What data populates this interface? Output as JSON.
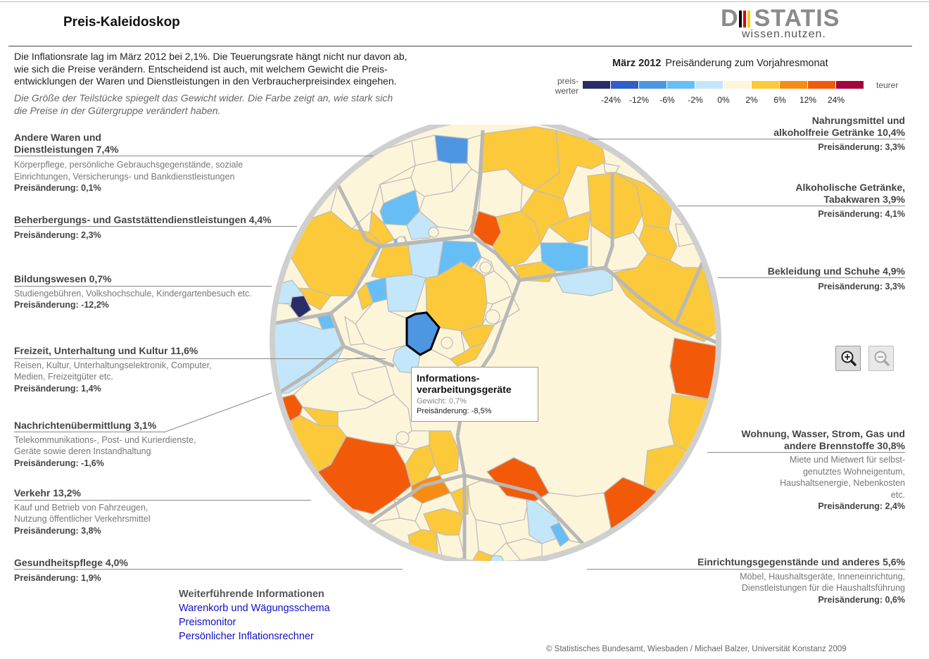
{
  "header": {
    "title": "Preis-Kaleidoskop"
  },
  "logo": {
    "word_left": "D",
    "word_right": "STATIS",
    "tagline": "wissen.nutzen.",
    "bar_colors": [
      "#000000",
      "#dd0000",
      "#ffcc00",
      "#8a8a8a"
    ]
  },
  "intro": {
    "text": "Die Inflationsrate lag im März 2012 bei 2,1%. Die Teuerungsrate hängt nicht nur davon ab, wie sich die Preise verändern. Entscheidend ist auch, mit welchem Gewicht die Preis­entwicklungen der Waren und Dienstleistungen in den Verbraucherpreisindex eingehen.",
    "hint": "Die Größe der Teilstücke spiegelt das Gewicht wider. Die Farbe zeigt an, wie stark sich die Preise in der Gütergruppe verändert haben."
  },
  "legend": {
    "month": "März 2012",
    "title": "Preisänderung zum Vorjahresmonat",
    "cheaper": "preis-werter",
    "dearer": "teurer",
    "ticks": [
      "-24%",
      "-12%",
      "-6%",
      "-2%",
      "0%",
      "2%",
      "6%",
      "12%",
      "24%"
    ],
    "colors": [
      "#2a2c66",
      "#2e5ec8",
      "#4e96e2",
      "#66bef5",
      "#c4e6fa",
      "#fdf5da",
      "#fcc93a",
      "#f68c14",
      "#f25a0a",
      "#a3053c"
    ]
  },
  "labels": {
    "g0": {
      "name": "Andere Waren und Dienstleistungen 7,4%",
      "desc": "Körperpflege, persönliche Gebrauchsgegenstände, soziale Einrichtungen, Versicherungs- und Bankdienstleistungen",
      "change": "Preisänderung: 0,1%"
    },
    "g1": {
      "name": "Beherbergungs- und Gaststättendienstleistungen 4,4%",
      "change": "Preisänderung: 2,3%"
    },
    "g2": {
      "name": "Bildungswesen 0,7%",
      "desc": "Studiengebühren, Volkshochschule, Kindergartenbesuch etc.",
      "change": "Preisänderung: -12,2%"
    },
    "g3": {
      "name": "Freizeit, Unterhaltung und Kultur 11,6%",
      "desc": "Reisen, Kultur, Unterhaltungselektronik, Computer, Medien, Freizeitgüter etc.",
      "change": "Preisänderung: 1,4%"
    },
    "g4": {
      "name": "Nachrichtenübermittlung 3,1%",
      "desc": "Telekommunikations-, Post- und Kurierdienste, Geräte sowie deren Instandhaltung",
      "change": "Preisänderung: -1,6%"
    },
    "g5": {
      "name": "Verkehr 13,2%",
      "desc": "Kauf und Betrieb von Fahrzeugen, Nutzung öffentlicher Verkehrsmittel",
      "change": "Preisänderung: 3,8%"
    },
    "g6": {
      "name": "Gesundheitspflege 4,0%",
      "change": "Preisänderung: 1,9%"
    },
    "g7": {
      "name": "Nahrungsmittel und alkoholfreie Getränke 10,4%",
      "change": "Preisänderung: 3,3%"
    },
    "g8": {
      "name": "Alkoholische Getränke, Tabakwaren 3,9%",
      "change": "Preisänderung: 4,1%"
    },
    "g9": {
      "name": "Bekleidung und Schuhe 4,9%",
      "change": "Preisänderung: 3,3%"
    },
    "g10": {
      "name": "Wohnung, Wasser, Strom, Gas und andere Brennstoffe 30,8%",
      "desc": "Miete und Mietwert für selbst­genutztes Wohneigentum, Haushalts­energie, Nebenkosten etc.",
      "change": "Preisänderung: 2,4%"
    },
    "g11": {
      "name": "Einrichtungsgegenstände und anderes 5,6%",
      "desc": "Möbel, Haushaltsgeräte, Inneneinrichtung, Dienstleistungen für die Haushaltsführung",
      "change": "Preisänderung: 0,6%"
    }
  },
  "tooltip": {
    "name": "Informations-verarbeitungsgeräte",
    "weight": "Gewicht: 0,7%",
    "change": "Preisänderung: -8,5%"
  },
  "more": {
    "heading": "Weiterführende Informationen",
    "links": [
      "Warenkorb und Wägungsschema",
      "Preismonitor",
      "Persönlicher Inflationsrechner"
    ]
  },
  "copyright": "© Statistisches Bundesamt, Wiesbaden / Michael Balzer, Universität Konstanz 2009",
  "chart_data": {
    "type": "voronoi-treemap",
    "title": "März 2012 Preisänderung zum Vorjahresmonat",
    "groups": [
      {
        "name": "Andere Waren und Dienstleistungen",
        "weight": 7.4,
        "change": 0.1
      },
      {
        "name": "Beherbergungs- und Gaststättendienstleistungen",
        "weight": 4.4,
        "change": 2.3
      },
      {
        "name": "Bildungswesen",
        "weight": 0.7,
        "change": -12.2
      },
      {
        "name": "Freizeit, Unterhaltung und Kultur",
        "weight": 11.6,
        "change": 1.4
      },
      {
        "name": "Nachrichtenübermittlung",
        "weight": 3.1,
        "change": -1.6
      },
      {
        "name": "Verkehr",
        "weight": 13.2,
        "change": 3.8
      },
      {
        "name": "Gesundheitspflege",
        "weight": 4.0,
        "change": 1.9
      },
      {
        "name": "Nahrungsmittel und alkoholfreie Getränke",
        "weight": 10.4,
        "change": 3.3
      },
      {
        "name": "Alkoholische Getränke, Tabakwaren",
        "weight": 3.9,
        "change": 4.1
      },
      {
        "name": "Bekleidung und Schuhe",
        "weight": 4.9,
        "change": 3.3
      },
      {
        "name": "Wohnung, Wasser, Strom, Gas und andere Brennstoffe",
        "weight": 30.8,
        "change": 2.4
      },
      {
        "name": "Einrichtungsgegenstände und anderes",
        "weight": 5.6,
        "change": 0.6
      }
    ],
    "highlighted": {
      "name": "Informationsverarbeitungsgeräte",
      "weight": 0.7,
      "change": -8.5
    }
  }
}
